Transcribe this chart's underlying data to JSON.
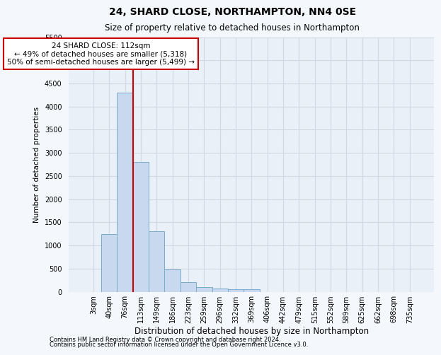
{
  "title": "24, SHARD CLOSE, NORTHAMPTON, NN4 0SE",
  "subtitle": "Size of property relative to detached houses in Northampton",
  "xlabel": "Distribution of detached houses by size in Northampton",
  "ylabel": "Number of detached properties",
  "categories": [
    "3sqm",
    "40sqm",
    "76sqm",
    "113sqm",
    "149sqm",
    "186sqm",
    "223sqm",
    "259sqm",
    "296sqm",
    "332sqm",
    "369sqm",
    "406sqm",
    "442sqm",
    "479sqm",
    "515sqm",
    "552sqm",
    "589sqm",
    "625sqm",
    "662sqm",
    "698sqm",
    "735sqm"
  ],
  "values": [
    0,
    1250,
    4300,
    2800,
    1300,
    475,
    200,
    100,
    75,
    50,
    60,
    0,
    0,
    0,
    0,
    0,
    0,
    0,
    0,
    0,
    0
  ],
  "bar_color": "#c8d8ee",
  "bar_edge_color": "#7aaacc",
  "vline_color": "#cc0000",
  "vline_x_index": 2.5,
  "annotation_text": "24 SHARD CLOSE: 112sqm\n← 49% of detached houses are smaller (5,318)\n50% of semi-detached houses are larger (5,499) →",
  "annotation_box_color": "#ffffff",
  "annotation_box_edge_color": "#cc0000",
  "ylim": [
    0,
    5500
  ],
  "yticks": [
    0,
    500,
    1000,
    1500,
    2000,
    2500,
    3000,
    3500,
    4000,
    4500,
    5000,
    5500
  ],
  "footer1": "Contains HM Land Registry data © Crown copyright and database right 2024.",
  "footer2": "Contains public sector information licensed under the Open Government Licence v3.0.",
  "fig_background_color": "#f4f7fc",
  "plot_background": "#eaf0f8",
  "grid_color": "#d0d8e4",
  "title_fontsize": 10,
  "subtitle_fontsize": 8.5,
  "xlabel_fontsize": 8.5,
  "ylabel_fontsize": 7.5,
  "tick_fontsize": 7,
  "annotation_fontsize": 7.5,
  "footer_fontsize": 6
}
